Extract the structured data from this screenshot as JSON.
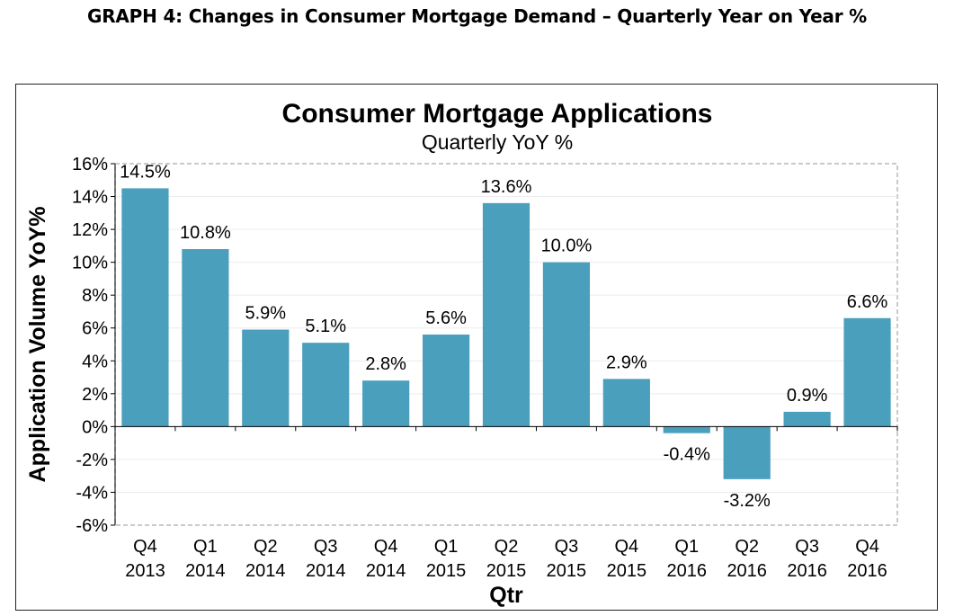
{
  "page_heading": "GRAPH 4: Changes in Consumer Mortgage Demand – Quarterly Year on Year %",
  "chart_data": {
    "type": "bar",
    "title": "Consumer Mortgage Applications",
    "subtitle": "Quarterly YoY %",
    "xlabel": "Qtr",
    "ylabel": "Application Volume YoY%",
    "categories": [
      [
        "Q4",
        "2013"
      ],
      [
        "Q1",
        "2014"
      ],
      [
        "Q2",
        "2014"
      ],
      [
        "Q3",
        "2014"
      ],
      [
        "Q4",
        "2014"
      ],
      [
        "Q1",
        "2015"
      ],
      [
        "Q2",
        "2015"
      ],
      [
        "Q3",
        "2015"
      ],
      [
        "Q4",
        "2015"
      ],
      [
        "Q1",
        "2016"
      ],
      [
        "Q2",
        "2016"
      ],
      [
        "Q3",
        "2016"
      ],
      [
        "Q4",
        "2016"
      ]
    ],
    "values": [
      14.5,
      10.8,
      5.9,
      5.1,
      2.8,
      5.6,
      13.6,
      10.0,
      2.9,
      -0.4,
      -3.2,
      0.9,
      6.6
    ],
    "data_labels": [
      "14.5%",
      "10.8%",
      "5.9%",
      "5.1%",
      "2.8%",
      "5.6%",
      "13.6%",
      "10.0%",
      "2.9%",
      "-0.4%",
      "-3.2%",
      "0.9%",
      "6.6%"
    ],
    "ylim": [
      -6,
      16
    ],
    "yticks": [
      16,
      14,
      12,
      10,
      8,
      6,
      4,
      2,
      0,
      -2,
      -4,
      -6
    ],
    "ytick_labels": [
      "16%",
      "14%",
      "12%",
      "10%",
      "8%",
      "6%",
      "4%",
      "2%",
      "0%",
      "-2%",
      "-4%",
      "-6%"
    ],
    "bar_color": "#4a9fbd",
    "gridlines": true,
    "legend": "none"
  }
}
